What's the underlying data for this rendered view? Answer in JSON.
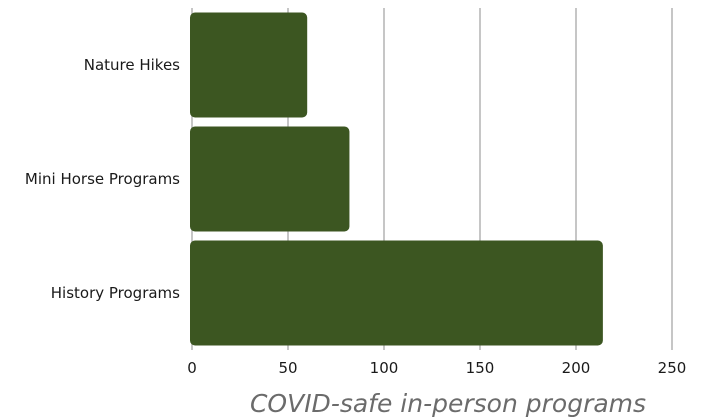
{
  "chart_data": {
    "type": "bar",
    "orientation": "horizontal",
    "categories": [
      "Nature Hikes",
      "Mini Horse Programs",
      "History Programs"
    ],
    "values": [
      60,
      82,
      214
    ],
    "xlabel": "COVID-safe in-person programs",
    "xlim": [
      0,
      250
    ],
    "xticks": [
      "0",
      "50",
      "100",
      "150",
      "200",
      "250"
    ],
    "grid": "vertical",
    "bar_color": "#3c5621",
    "grid_color": "#b3b3b3"
  }
}
